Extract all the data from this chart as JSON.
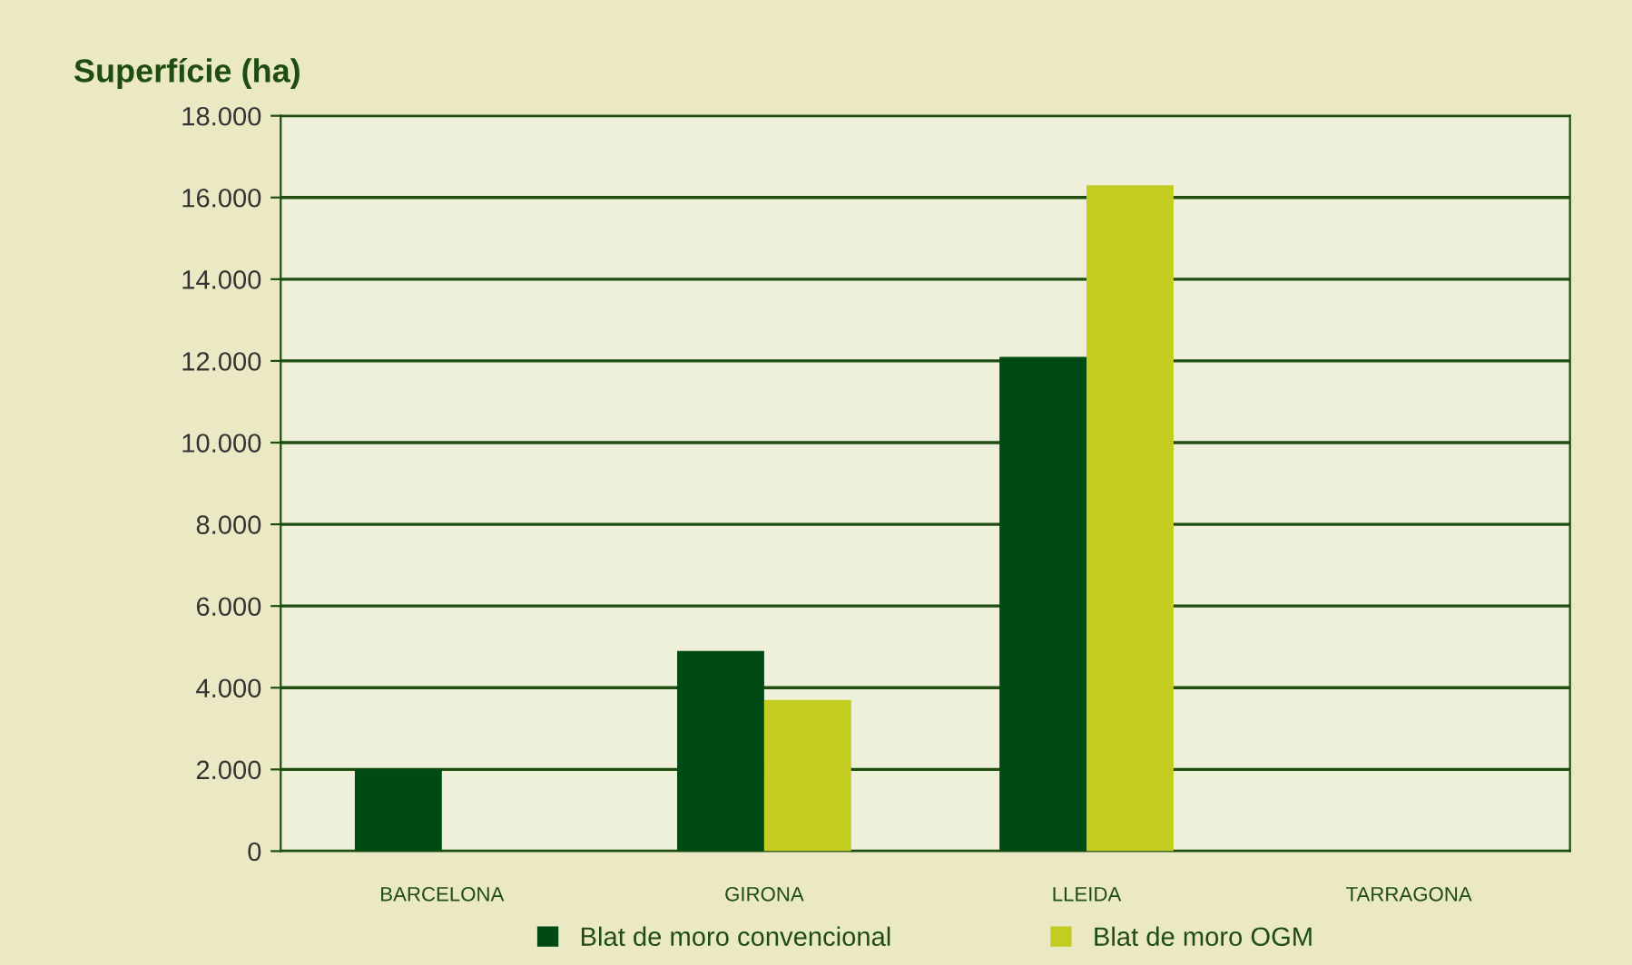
{
  "chart_data": {
    "type": "bar",
    "title": "Superfície (ha)",
    "categories": [
      "BARCELONA",
      "GIRONA",
      "LLEIDA",
      "TARRAGONA"
    ],
    "series": [
      {
        "name": "Blat de moro convencional",
        "color": "#004a14",
        "values": [
          2000,
          4900,
          12100,
          0
        ]
      },
      {
        "name": "Blat de moro OGM",
        "color": "#c3cc21",
        "values": [
          0,
          3700,
          16300,
          0
        ]
      }
    ],
    "ylim": [
      0,
      18000
    ],
    "yticks": [
      0,
      {
        "value": 2000,
        "label": "2.000"
      },
      {
        "value": 4000,
        "label": "4.000"
      },
      {
        "value": 6000,
        "label": "6.000"
      },
      {
        "value": 8000,
        "label": "8.000"
      },
      {
        "value": 10000,
        "label": "10.000"
      },
      {
        "value": 12000,
        "label": "12.000"
      },
      {
        "value": 14000,
        "label": "14.000"
      },
      {
        "value": 16000,
        "label": "16.000"
      },
      {
        "value": 18000,
        "label": "18.000"
      }
    ],
    "grid": "y",
    "legend": "bottom"
  }
}
